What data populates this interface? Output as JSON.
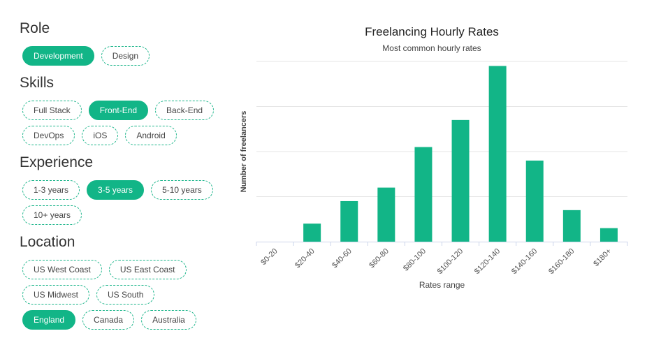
{
  "filters": {
    "role": {
      "title": "Role",
      "rows": [
        [
          {
            "label": "Development",
            "selected": true
          },
          {
            "label": "Design",
            "selected": false
          }
        ]
      ]
    },
    "skills": {
      "title": "Skills",
      "rows": [
        [
          {
            "label": "Full Stack",
            "selected": false
          },
          {
            "label": "Front-End",
            "selected": true
          },
          {
            "label": "Back-End",
            "selected": false
          }
        ],
        [
          {
            "label": "DevOps",
            "selected": false
          },
          {
            "label": "iOS",
            "selected": false
          },
          {
            "label": "Android",
            "selected": false
          }
        ]
      ]
    },
    "experience": {
      "title": "Experience",
      "rows": [
        [
          {
            "label": "1-3 years",
            "selected": false
          },
          {
            "label": "3-5 years",
            "selected": true
          },
          {
            "label": "5-10 years",
            "selected": false
          }
        ],
        [
          {
            "label": "10+ years",
            "selected": false
          }
        ]
      ]
    },
    "location": {
      "title": "Location",
      "rows": [
        [
          {
            "label": "US West Coast",
            "selected": false
          },
          {
            "label": "US East Coast",
            "selected": false
          }
        ],
        [
          {
            "label": "US Midwest",
            "selected": false
          },
          {
            "label": "US South",
            "selected": false
          }
        ],
        [
          {
            "label": "England",
            "selected": true
          },
          {
            "label": "Canada",
            "selected": false
          },
          {
            "label": "Australia",
            "selected": false
          }
        ]
      ]
    }
  },
  "colors": {
    "accent": "#12b587",
    "grid": "#e6e6e6",
    "axis": "#ccd6eb"
  },
  "chart_data": {
    "type": "bar",
    "title": "Freelancing Hourly Rates",
    "subtitle": "Most common hourly rates",
    "xlabel": "Rates range",
    "ylabel": "Number of freelancers",
    "categories": [
      "$0-20",
      "$20-40",
      "$40-60",
      "$60-80",
      "$80-100",
      "$100-120",
      "$120-140",
      "$140-160",
      "$160-180",
      "$180+"
    ],
    "values": [
      0,
      8,
      18,
      24,
      42,
      54,
      78,
      36,
      14,
      6
    ],
    "ylim": [
      0,
      80
    ],
    "grid": true,
    "legend": "none"
  }
}
